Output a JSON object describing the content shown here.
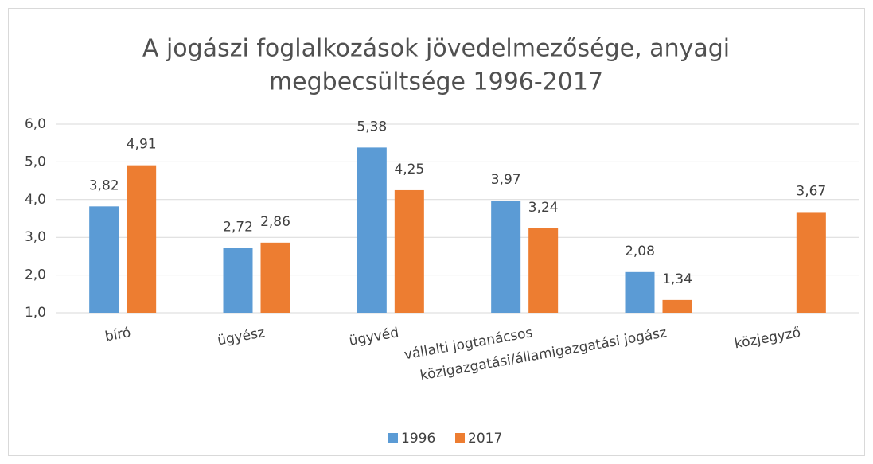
{
  "chart_data": {
    "type": "bar",
    "title": [
      "A jogászi foglalkozások jövedelmezősége, anyagi",
      "megbecsültsége  1996-2017"
    ],
    "categories": [
      "bíró",
      "ügyész",
      "ügyvéd",
      "vállalti jogtanácsos",
      "közigazgatási/államigazgatási jogász",
      "közjegyző"
    ],
    "series": [
      {
        "name": "1996",
        "color": "#5b9bd5",
        "values": [
          3.82,
          2.72,
          5.38,
          3.97,
          2.08,
          null
        ],
        "value_labels": [
          "3,82",
          "2,72",
          "5,38",
          "3,97",
          "2,08",
          null
        ]
      },
      {
        "name": "2017",
        "color": "#ed7d31",
        "values": [
          4.91,
          2.86,
          4.25,
          3.24,
          1.34,
          3.67
        ],
        "value_labels": [
          "4,91",
          "2,86",
          "4,25",
          "3,24",
          "1,34",
          "3,67"
        ]
      }
    ],
    "ylim": [
      1,
      6
    ],
    "yticks": [
      {
        "value": 1,
        "label": "1,0"
      },
      {
        "value": 2,
        "label": "2,0"
      },
      {
        "value": 3,
        "label": "3,0"
      },
      {
        "value": 4,
        "label": "4,0"
      },
      {
        "value": 5,
        "label": "5,0"
      },
      {
        "value": 6,
        "label": "6,0"
      }
    ],
    "grid": true,
    "legend": "bottom"
  }
}
